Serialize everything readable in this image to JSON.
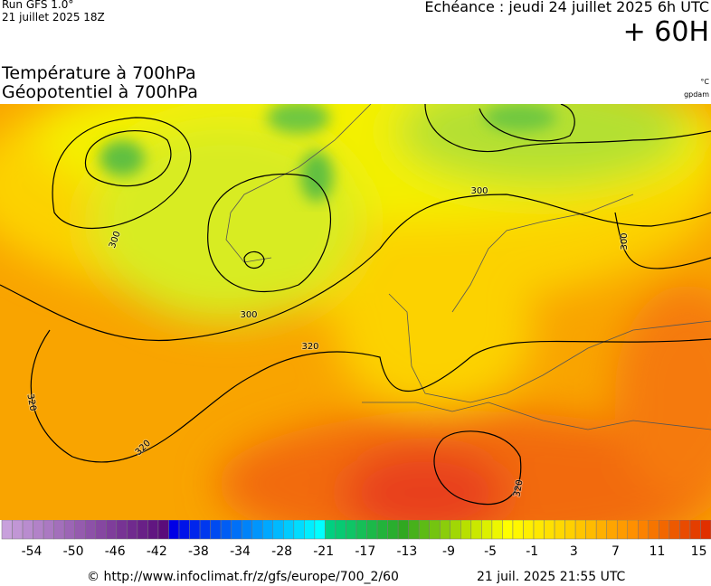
{
  "header": {
    "run": "Run GFS 1.0°",
    "run_date": "21 juillet 2025 18Z",
    "echeance": "Echéance : jeudi 24 juillet 2025 6h UTC",
    "lead": "+ 60H"
  },
  "title": {
    "line1": "Température à 700hPa",
    "line2": "Géopotentiel à 700hPa",
    "unit1": "°C",
    "unit2": "gpdam"
  },
  "map": {
    "contour_labels": [
      "300",
      "300",
      "300",
      "300",
      "320",
      "320",
      "320",
      "320"
    ]
  },
  "colorbar": {
    "labels": [
      -54,
      -50,
      -46,
      -42,
      -38,
      -34,
      -28,
      -21,
      -17,
      -13,
      -9,
      -5,
      -1,
      3,
      7,
      11,
      15
    ]
  },
  "footer": {
    "source": "© http://www.infoclimat.fr/z/gfs/europe/700_2/60",
    "generated": "21 juil. 2025 21:55 UTC"
  }
}
